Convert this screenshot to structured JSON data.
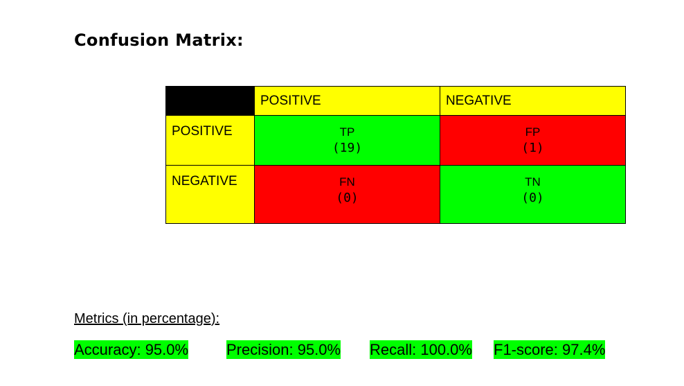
{
  "title": "Confusion Matrix:",
  "matrix": {
    "columns": [
      "POSITIVE",
      "NEGATIVE"
    ],
    "rows": [
      "POSITIVE",
      "NEGATIVE"
    ],
    "cells": [
      [
        {
          "label": "TP",
          "count": "(19)",
          "color": "#00ff00"
        },
        {
          "label": "FP",
          "count": "(1)",
          "color": "#ff0000"
        }
      ],
      [
        {
          "label": "FN",
          "count": "(0)",
          "color": "#ff0000"
        },
        {
          "label": "TN",
          "count": "(0)",
          "color": "#00ff00"
        }
      ]
    ],
    "header_color": "#ffff00",
    "corner_color": "#000000"
  },
  "metrics": {
    "title": "Metrics (in percentage):",
    "items": [
      {
        "text": "Accuracy: 95.0%"
      },
      {
        "text": "Precision: 95.0%"
      },
      {
        "text": "Recall: 100.0%"
      },
      {
        "text": "F1-score: 97.4%"
      }
    ],
    "highlight_color": "#00ff00"
  },
  "chart_data": {
    "type": "table",
    "columns": [
      "POSITIVE",
      "NEGATIVE"
    ],
    "rows": [
      "POSITIVE",
      "NEGATIVE"
    ],
    "values": [
      [
        19,
        1
      ],
      [
        0,
        0
      ]
    ],
    "cell_labels": [
      [
        "TP",
        "FP"
      ],
      [
        "FN",
        "TN"
      ]
    ],
    "metrics": {
      "Accuracy": 95.0,
      "Precision": 95.0,
      "Recall": 100.0,
      "F1-score": 97.4
    }
  }
}
